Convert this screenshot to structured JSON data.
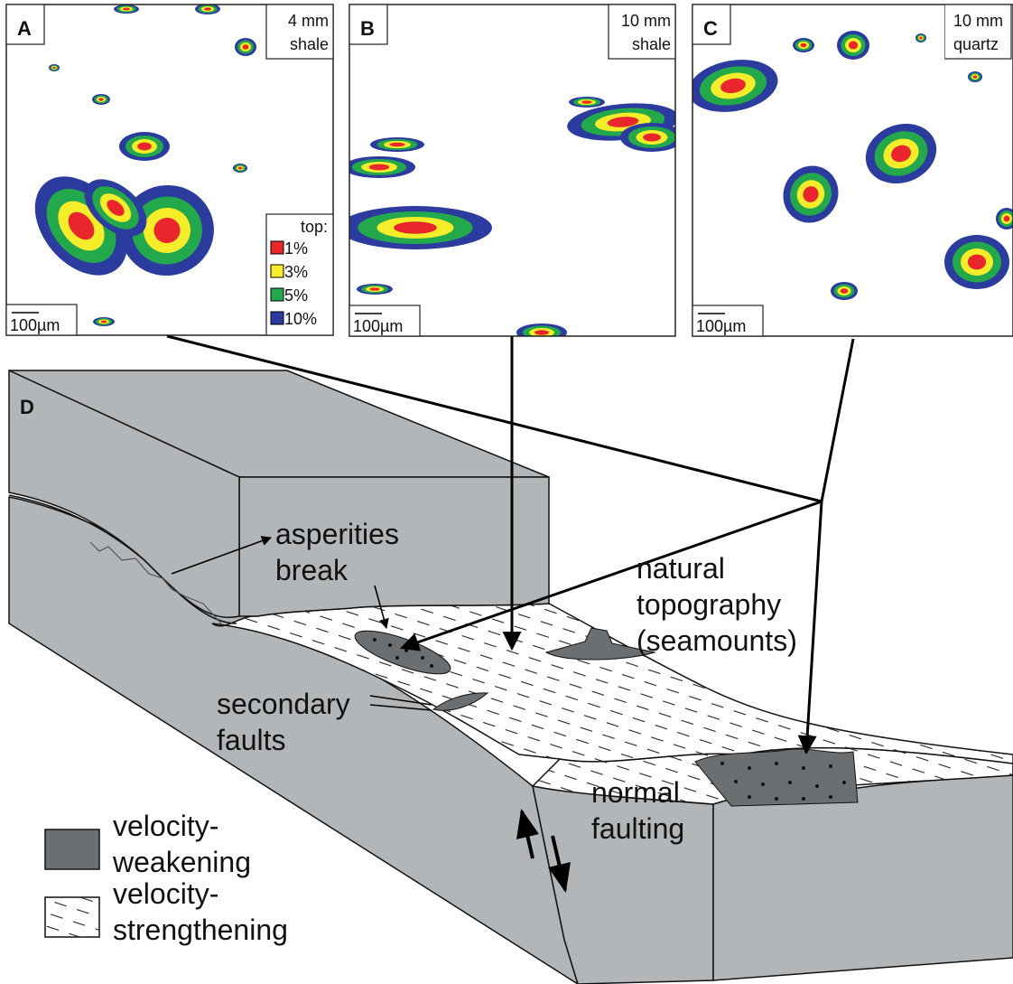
{
  "panels": [
    {
      "label": "A",
      "tag": [
        "4 mm",
        "shale"
      ],
      "scale": "100µm",
      "legend": {
        "title": "top:",
        "items": [
          {
            "label": "1%",
            "color": "#e8262b"
          },
          {
            "label": "3%",
            "color": "#f5ec2a"
          },
          {
            "label": "5%",
            "color": "#23a94b"
          },
          {
            "label": "10%",
            "color": "#2b3b9e"
          }
        ]
      }
    },
    {
      "label": "B",
      "tag": [
        "10 mm",
        "shale"
      ],
      "scale": "100µm"
    },
    {
      "label": "C",
      "tag": [
        "10 mm",
        "quartz"
      ],
      "scale": "100µm"
    }
  ],
  "diagram": {
    "label": "D",
    "annotations": {
      "asperities": [
        "asperities",
        "break"
      ],
      "topography": [
        "natural",
        "topography",
        "(seamounts)"
      ],
      "secondary": [
        "secondary",
        "faults"
      ],
      "normal": [
        "normal",
        "faulting"
      ]
    },
    "legend": {
      "weakening": [
        "velocity-",
        "weakening"
      ],
      "strengthening": [
        "velocity-",
        "strengthening"
      ]
    }
  }
}
